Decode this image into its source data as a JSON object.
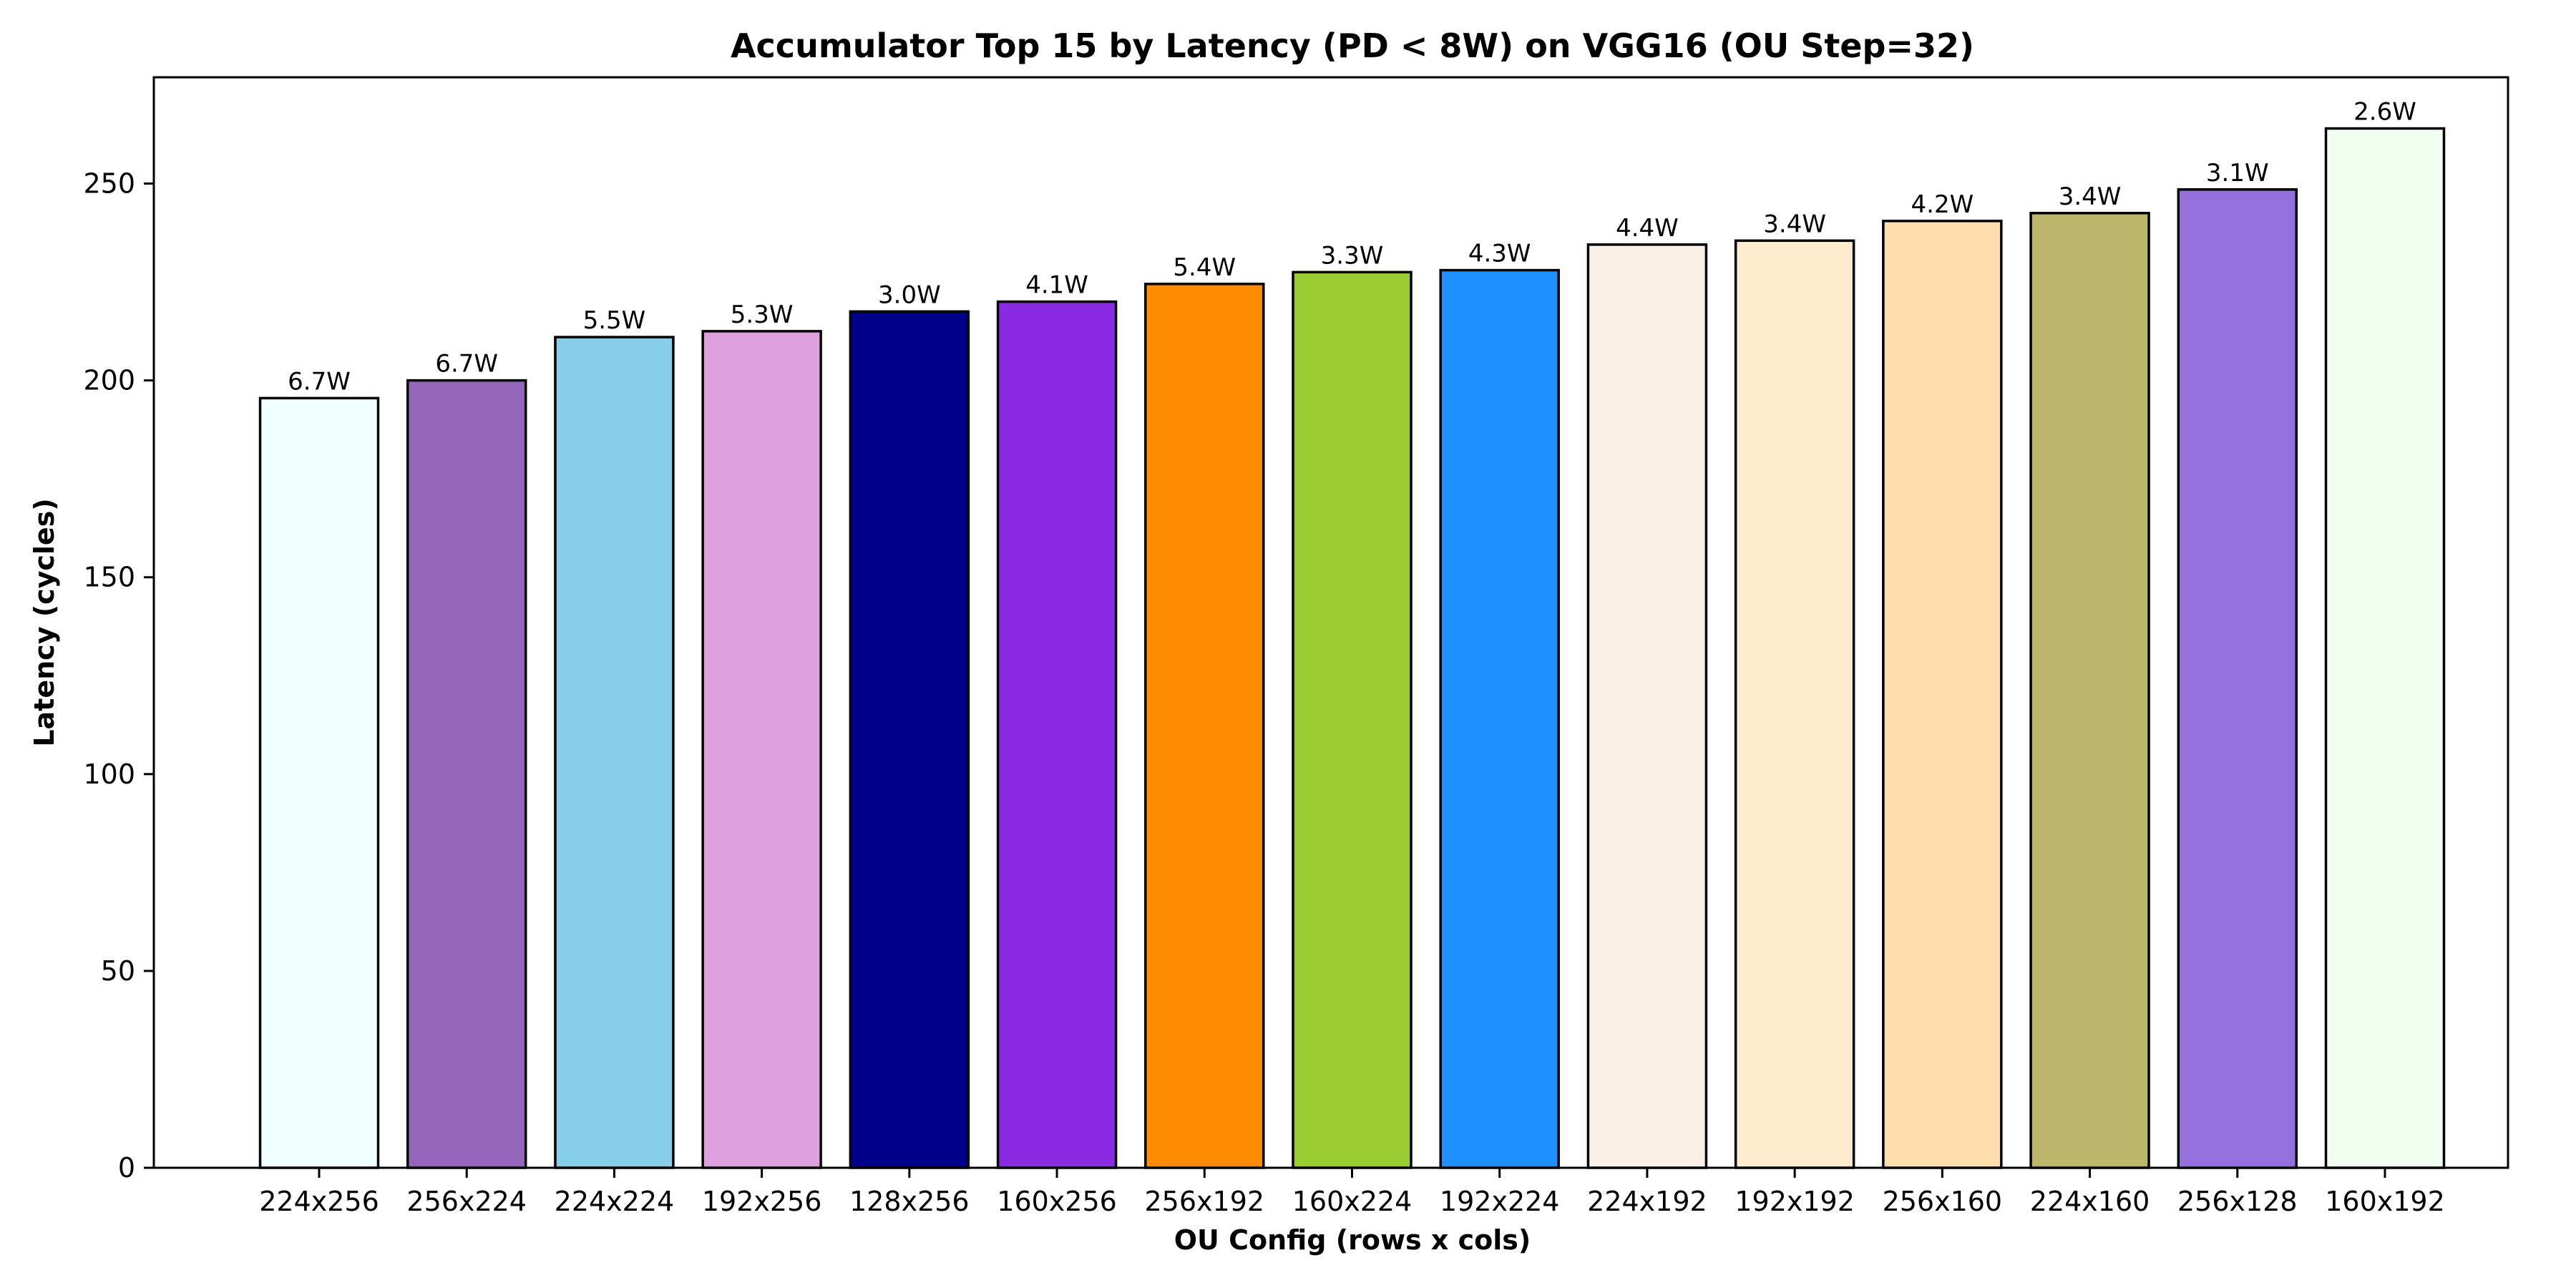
{
  "chart_data": {
    "type": "bar",
    "title": "Accumulator Top 15 by Latency (PD < 8W) on VGG16 (OU Step=32)",
    "xlabel": "OU Config (rows x cols)",
    "ylabel": "Latency (cycles)",
    "ylim": [
      0,
      277
    ],
    "yticks": [
      0,
      50,
      100,
      150,
      200,
      250
    ],
    "categories": [
      "224x256",
      "256x224",
      "224x224",
      "192x256",
      "128x256",
      "160x256",
      "256x192",
      "160x224",
      "192x224",
      "224x192",
      "192x192",
      "256x160",
      "224x160",
      "256x128",
      "160x192"
    ],
    "values": [
      195.5,
      200,
      211,
      212.5,
      217.5,
      220,
      224.5,
      227.5,
      228,
      234.5,
      235.5,
      240.5,
      242.5,
      248.5,
      264
    ],
    "data_labels": [
      "6.7W",
      "6.7W",
      "5.5W",
      "5.3W",
      "3.0W",
      "4.1W",
      "5.4W",
      "3.3W",
      "4.3W",
      "4.4W",
      "3.4W",
      "4.2W",
      "3.4W",
      "3.1W",
      "2.6W"
    ],
    "colors": [
      "#f0ffff",
      "#9467bd",
      "#87ceeb",
      "#dda0dd",
      "#00008b",
      "#8a2be2",
      "#ff8c00",
      "#9acd32",
      "#1e90ff",
      "#faf0e6",
      "#ffebcd",
      "#ffdead",
      "#bdb76b",
      "#9370db",
      "#f0fff0"
    ],
    "grid": false,
    "legend": "none"
  }
}
